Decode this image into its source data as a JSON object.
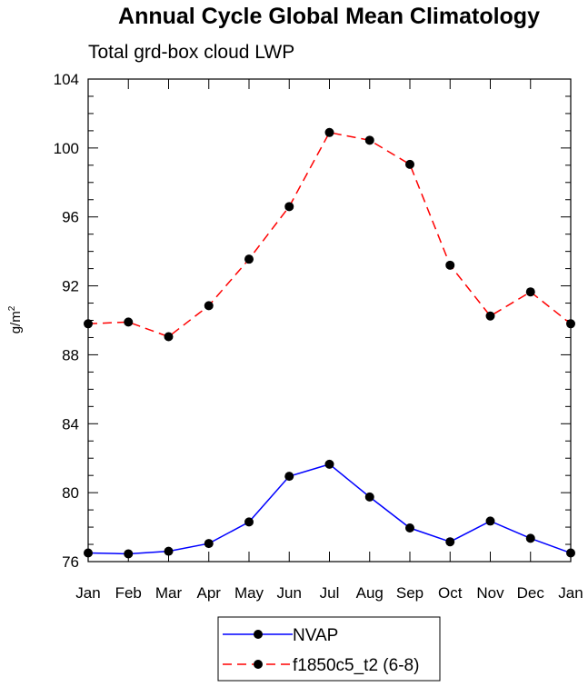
{
  "chart_data": {
    "type": "line",
    "title": "Annual Cycle Global Mean Climatology",
    "subtitle": "Total grd-box cloud LWP",
    "ylabel": "g/m",
    "ylabel_superscript": "2",
    "xlabel": "",
    "categories": [
      "Jan",
      "Feb",
      "Mar",
      "Apr",
      "May",
      "Jun",
      "Jul",
      "Aug",
      "Sep",
      "Oct",
      "Nov",
      "Dec",
      "Jan"
    ],
    "ylim": [
      76,
      104
    ],
    "yticks": [
      "76",
      "80",
      "84",
      "88",
      "92",
      "96",
      "100",
      "104"
    ],
    "grid": false,
    "legend_position": "bottom-center",
    "series": [
      {
        "name": "NVAP",
        "color": "#0000ff",
        "dash": "solid",
        "marker": "circle",
        "values": [
          76.5,
          76.45,
          76.6,
          77.05,
          78.3,
          80.95,
          81.65,
          79.75,
          77.95,
          77.15,
          78.35,
          77.35,
          76.5
        ]
      },
      {
        "name": "f1850c5_t2 (6-8)",
        "color": "#ff0000",
        "dash": "dashed",
        "marker": "circle",
        "values": [
          89.8,
          89.9,
          89.05,
          90.85,
          93.55,
          96.6,
          100.9,
          100.45,
          99.05,
          93.2,
          90.25,
          91.65,
          89.8
        ]
      }
    ]
  }
}
